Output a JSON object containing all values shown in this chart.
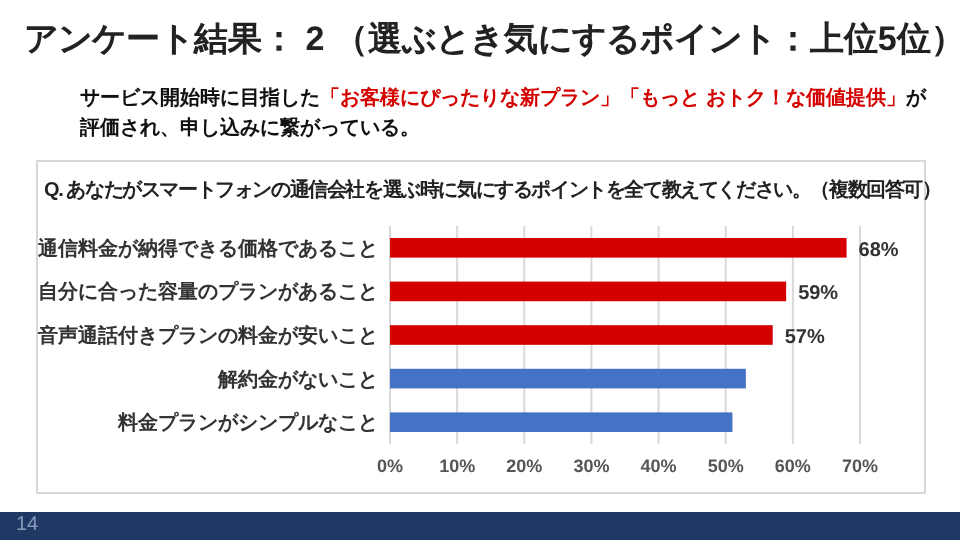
{
  "chart_data": {
    "type": "bar",
    "orientation": "horizontal",
    "title": "アンケート結果： 2 （選ぶとき気にするポイント：上位5位）",
    "subtitle": "サービス開始時に目指した「お客様にぴったりな新プラン」「もっと おトク！な価値提供」が評価され、申し込みに繋がっている。",
    "annotations": [
      "Q.  あなたがスマートフォンの通信会社を選ぶ時に気にするポイントを全て教えてください。（複数回答可）",
      "14"
    ],
    "categories": [
      "通信料金が納得できる価格であること",
      "自分に合った容量のプランがあること",
      "音声通話付きプランの料金が安いこと",
      "解約金がないこと",
      "料金プランがシンプルなこと"
    ],
    "values": [
      68,
      59,
      57,
      53,
      51
    ],
    "colors": [
      "#d40000",
      "#d40000",
      "#d40000",
      "#4472c4",
      "#4472c4"
    ],
    "value_labels": [
      "68%",
      "59%",
      "57%",
      null,
      null
    ],
    "xlim": [
      0,
      70
    ],
    "xticks": [
      {
        "value": 0,
        "label": "0%"
      },
      {
        "value": 10,
        "label": "10%"
      },
      {
        "value": 20,
        "label": "20%"
      },
      {
        "value": 30,
        "label": "30%"
      },
      {
        "value": 40,
        "label": "40%"
      },
      {
        "value": 50,
        "label": "50%"
      },
      {
        "value": 60,
        "label": "60%"
      },
      {
        "value": 70,
        "label": "70%"
      }
    ],
    "grid": "x"
  }
}
